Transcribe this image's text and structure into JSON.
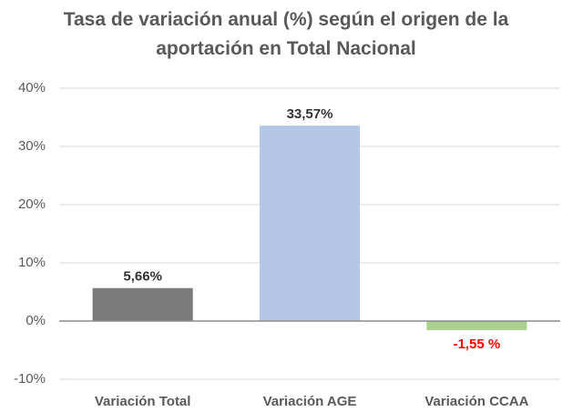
{
  "chart_data": {
    "type": "bar",
    "title": "Tasa de variación anual (%) según el origen de la aportación en Total Nacional",
    "categories": [
      "Variación Total",
      "Variación AGE",
      "Variación CCAA"
    ],
    "values": [
      5.66,
      33.57,
      -1.55
    ],
    "value_labels": [
      "5,66%",
      "33,57%",
      "-1,55 %"
    ],
    "colors": [
      "#7a7a7a",
      "#b4c7e7",
      "#a9d18e"
    ],
    "value_label_colors": [
      "#333333",
      "#333333",
      "#ff0000"
    ],
    "ylim": [
      -10,
      40
    ],
    "yticks": [
      {
        "value": -10,
        "label": "-10%"
      },
      {
        "value": 0,
        "label": "0%"
      },
      {
        "value": 10,
        "label": "10%"
      },
      {
        "value": 20,
        "label": "20%"
      },
      {
        "value": 30,
        "label": "30%"
      },
      {
        "value": 40,
        "label": "40%"
      }
    ],
    "grid": true
  }
}
